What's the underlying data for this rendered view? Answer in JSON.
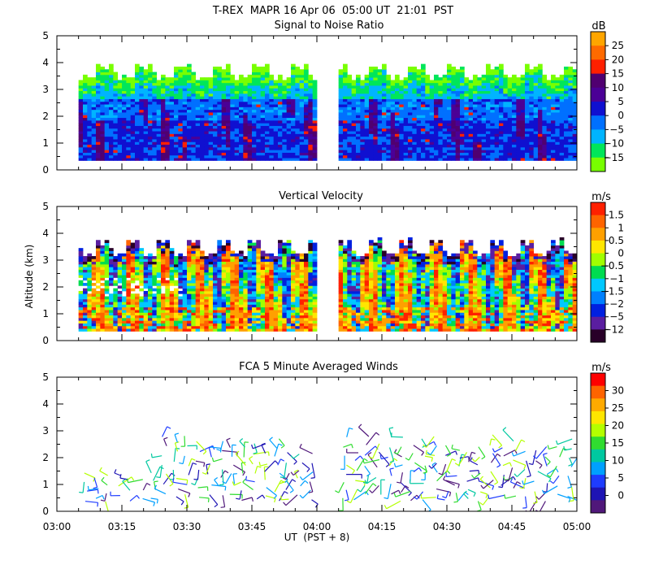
{
  "header": {
    "title": "T-REX  MAPR 16 Apr 06  05:00 UT  21:01  PST"
  },
  "chart_data": [
    {
      "type": "heatmap",
      "title": "Signal to Noise Ratio",
      "ylabel": "",
      "ylim": [
        0,
        5
      ],
      "yticks": [
        "0",
        "1",
        "2",
        "3",
        "4",
        "5"
      ],
      "unit": "dB",
      "colorbar": {
        "labels": [
          "25",
          "20",
          "15",
          "10",
          "5",
          "0",
          "−5",
          "−10",
          "−15"
        ],
        "colors": [
          "#ffa500",
          "#ff6a00",
          "#ff2000",
          "#500070",
          "#4b0096",
          "#1010d0",
          "#0070ff",
          "#00b4ff",
          "#00e65a",
          "#78ff00"
        ]
      },
      "data_gap": [
        "04:00",
        "04:05"
      ],
      "data_bottom_km": 0.35,
      "data_top_km": 3.7,
      "x_range": [
        "03:05",
        "05:00"
      ]
    },
    {
      "type": "heatmap",
      "title": "Vertical Velocity",
      "ylabel": "Altitude (km)",
      "ylim": [
        0,
        5
      ],
      "yticks": [
        "0",
        "1",
        "2",
        "3",
        "4",
        "5"
      ],
      "unit": "m/s",
      "colorbar": {
        "labels": [
          "1.5",
          "1",
          "0.5",
          "0",
          "−0.5",
          "−1",
          "−1.5",
          "−2",
          "−5",
          "−12"
        ],
        "colors": [
          "#ff2000",
          "#ff6400",
          "#ffa000",
          "#ffe600",
          "#a0ff00",
          "#00dc50",
          "#00c8ff",
          "#0080ff",
          "#0020e0",
          "#5a1ea0",
          "#280028"
        ]
      },
      "data_gap": [
        "04:00",
        "04:05"
      ],
      "data_bottom_km": 0.35,
      "data_top_km": 3.6,
      "x_range": [
        "03:05",
        "05:00"
      ]
    },
    {
      "type": "scatter",
      "title": "FCA 5 Minute Averaged Winds",
      "ylabel": "",
      "ylim": [
        0,
        5
      ],
      "yticks": [
        "0",
        "1",
        "2",
        "3",
        "4",
        "5"
      ],
      "unit": "m/s",
      "colorbar": {
        "labels": [
          "30",
          "25",
          "20",
          "15",
          "10",
          "5",
          "0"
        ],
        "colors": [
          "#ff0000",
          "#ff6400",
          "#ffaa00",
          "#ffe600",
          "#b4ff00",
          "#30dc30",
          "#00c8a0",
          "#00a0ff",
          "#1e3cff",
          "#1e14b4",
          "#50187a"
        ]
      },
      "data_gap": [
        "04:00",
        "04:05"
      ],
      "x_range": [
        "03:05",
        "05:00"
      ]
    }
  ],
  "xaxis": {
    "label": "UT  (PST + 8)",
    "ticks": [
      "03:00",
      "03:15",
      "03:30",
      "03:45",
      "04:00",
      "04:15",
      "04:30",
      "04:45",
      "05:00"
    ]
  }
}
